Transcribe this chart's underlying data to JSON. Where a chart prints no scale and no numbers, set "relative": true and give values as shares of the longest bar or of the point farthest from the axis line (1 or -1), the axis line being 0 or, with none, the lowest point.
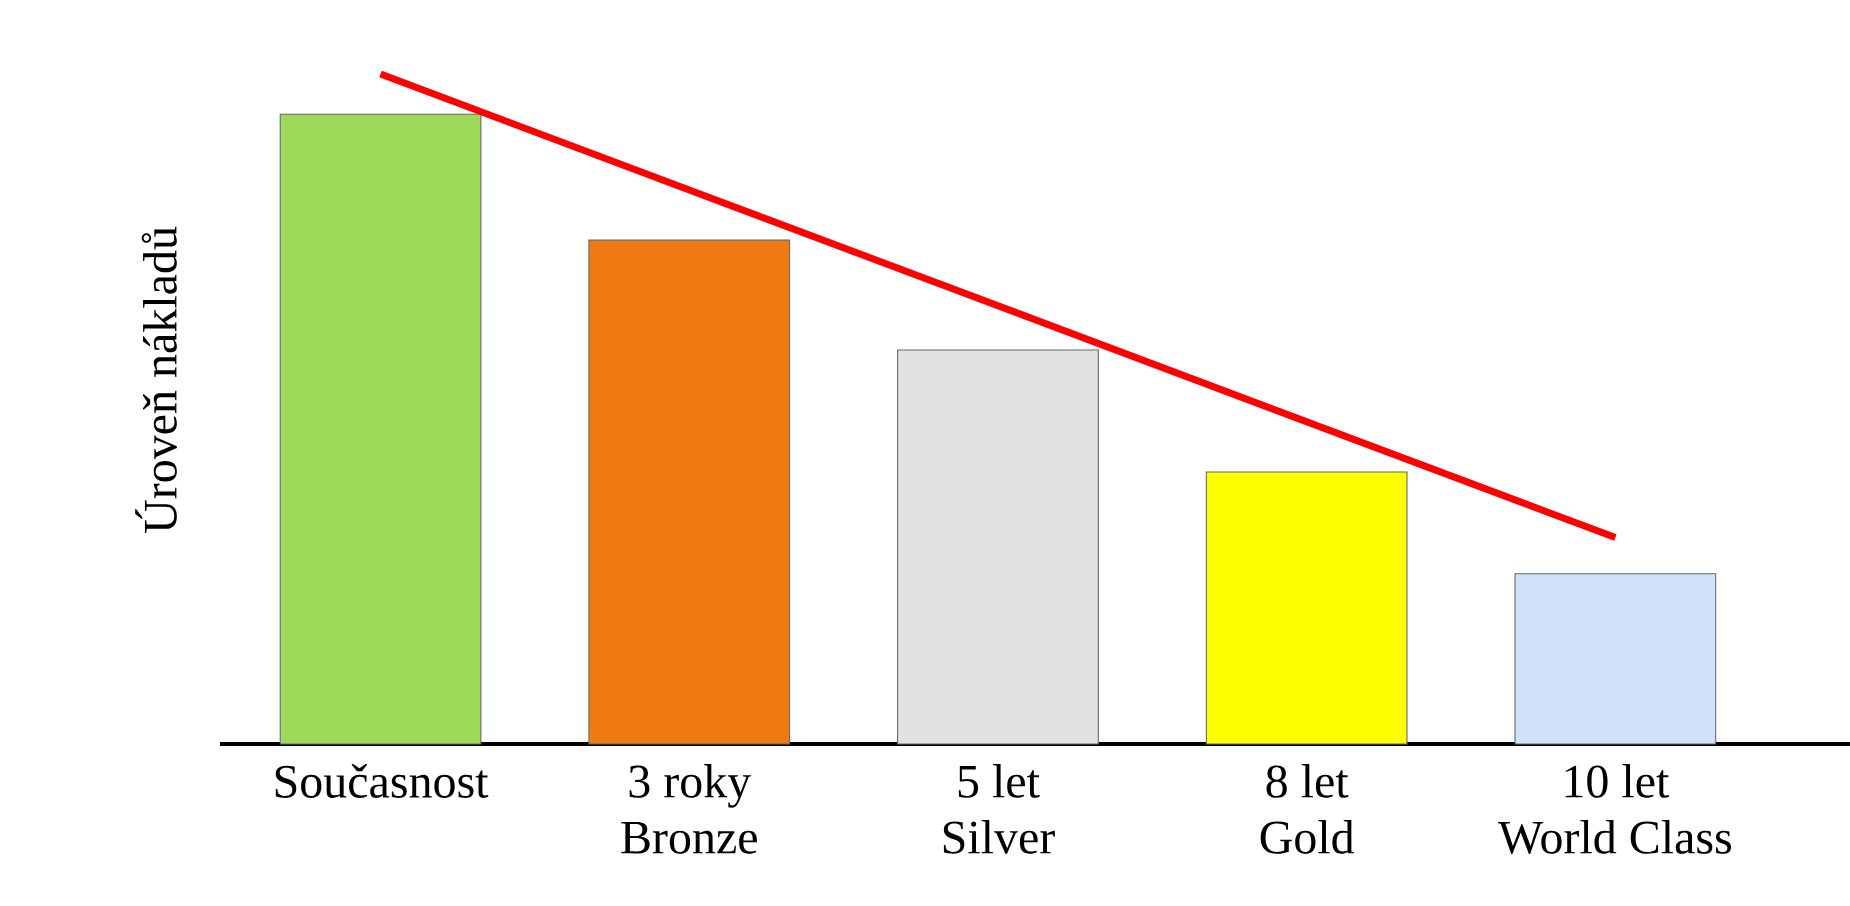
{
  "chart_data": {
    "type": "bar",
    "ylabel": "Úroveň nákladů",
    "relative": true,
    "tick_labels": "x",
    "categories": [
      "Současnost",
      "3 roky\nBronze",
      "5 let\nSilver",
      "8 let\nGold",
      "10 let\nWorld Class"
    ],
    "series": [
      {
        "values": [
          0.94,
          0.752,
          0.588,
          0.406,
          0.254
        ],
        "colors": [
          "#9edb5a",
          "#f07a12",
          "#e2e2e2",
          "#ffff00",
          "#cfe2f7"
        ]
      },
      {
        "type": "line",
        "values": [
          1,
          0.827,
          0.654,
          0.481,
          0.308
        ],
        "color": "#ff0000",
        "line_style": "solid",
        "marker": "none"
      }
    ]
  }
}
